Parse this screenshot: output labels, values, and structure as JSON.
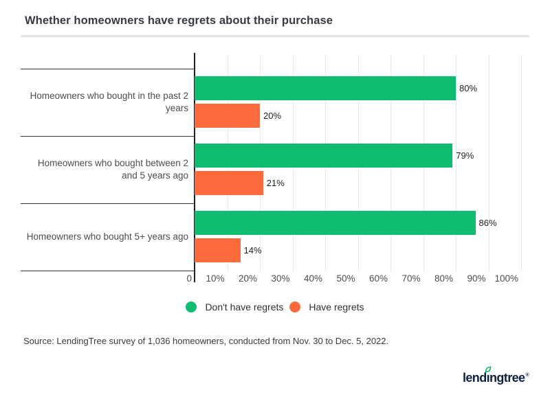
{
  "title": "Whether homeowners have regrets about their purchase",
  "source": "Source: LendingTree survey of 1,036 homeowners, conducted from Nov. 30 to Dec. 5, 2022.",
  "chart_data": {
    "type": "bar",
    "orientation": "horizontal",
    "title": "Whether homeowners have regrets about their purchase",
    "categories": [
      "Homeowners who bought in the past 2 years",
      "Homeowners who bought between 2 and 5 years ago",
      "Homeowners who bought 5+ years ago"
    ],
    "series": [
      {
        "name": "Don't have regrets",
        "color": "#10bc72",
        "values": [
          80,
          79,
          86
        ]
      },
      {
        "name": "Have regrets",
        "color": "#fb6b3b",
        "values": [
          20,
          21,
          14
        ]
      }
    ],
    "value_suffix": "%",
    "x_ticks": [
      "0",
      "10%",
      "20%",
      "30%",
      "40%",
      "50%",
      "60%",
      "70%",
      "80%",
      "90%",
      "100%"
    ],
    "xlim": [
      0,
      100
    ],
    "grid": true,
    "legend_position": "bottom"
  },
  "logo": {
    "wordmark": "lendingtree",
    "trademark": "®",
    "text_color": "#0c2144",
    "leaf_color": "#00b159"
  }
}
